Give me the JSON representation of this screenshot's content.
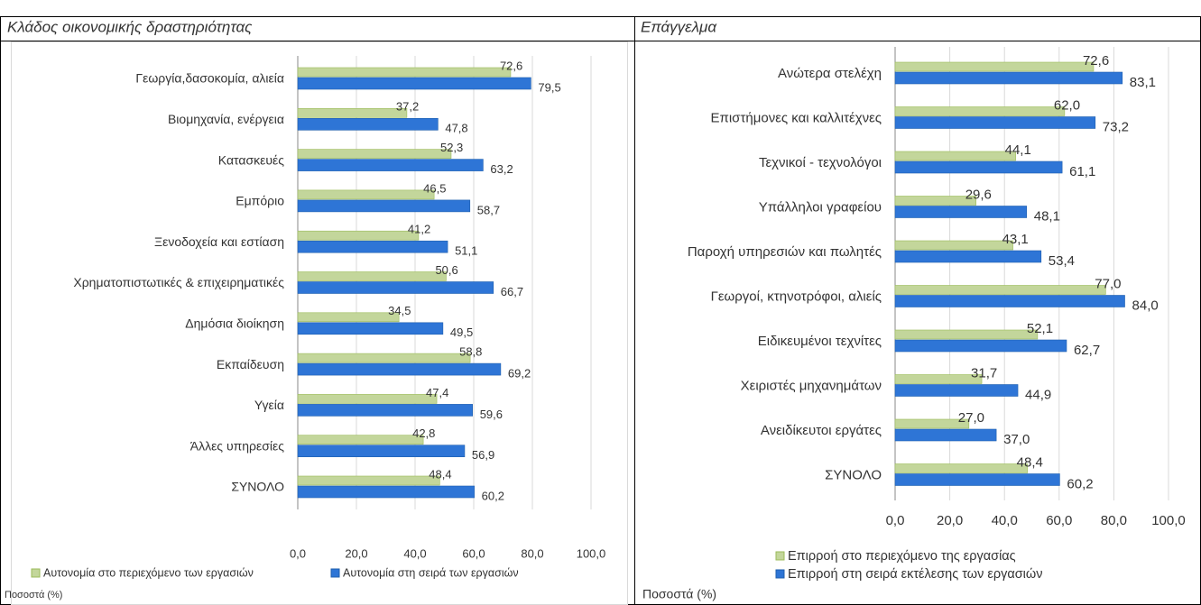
{
  "chart_data": [
    {
      "type": "bar",
      "title": "Κλάδος οικονομικής δραστηριότητας",
      "categories": [
        "Γεωργία,δασοκομία,  αλιεία",
        "Βιομηχανία, ενέργεια",
        "Κατασκευές",
        "Εμπόριο",
        "Ξενοδοχεία και εστίαση",
        "Χρηματοπιστωτικές & επιχειρηματικές",
        "Δημόσια διοίκηση",
        "Εκπαίδευση",
        "Υγεία",
        "Άλλες υπηρεσίες",
        "ΣΥΝΟΛΟ"
      ],
      "series": [
        {
          "name": "Αυτονομία στο περιεχόμενο των εργασιών",
          "color": "#c3d69b",
          "values": [
            72.6,
            37.2,
            52.3,
            46.5,
            41.2,
            50.6,
            34.5,
            58.8,
            47.4,
            42.8,
            48.4
          ],
          "value_labels": [
            "72,6",
            "37,2",
            "52,3",
            "46,5",
            "41,2",
            "50,6",
            "34,5",
            "58,8",
            "47,4",
            "42,8",
            "48,4"
          ]
        },
        {
          "name": "Αυτονομία  στη σειρά των εργασιών",
          "color": "#2e75d6",
          "values": [
            79.5,
            47.8,
            63.2,
            58.7,
            51.1,
            66.7,
            49.5,
            69.2,
            59.6,
            56.9,
            60.2
          ],
          "value_labels": [
            "79,5",
            "47,8",
            "63,2",
            "58,7",
            "51,1",
            "66,7",
            "49,5",
            "69,2",
            "59,6",
            "56,9",
            "60,2"
          ]
        }
      ],
      "xlim": [
        0,
        100
      ],
      "xticks": [
        {
          "value": 0,
          "label": "0,0"
        },
        {
          "value": 20,
          "label": "20,0"
        },
        {
          "value": 40,
          "label": "40,0"
        },
        {
          "value": 60,
          "label": "60,0"
        },
        {
          "value": 80,
          "label": "80,0"
        },
        {
          "value": 100,
          "label": "100,0"
        }
      ],
      "grid": true,
      "note": "Ποσοστά (%)"
    },
    {
      "type": "bar",
      "title": "Επάγγελμα",
      "categories": [
        "Ανώτερα στελέχη",
        "Επιστήμονες και καλλιτέχνες",
        "Τεχνικοί - τεχνολόγοι",
        "Υπάλληλοι γραφείου",
        "Παροχή υπηρεσιών και πωλητές",
        "Γεωργοί, κτηνοτρόφοι, αλιείς",
        "Ειδικευμένοι τεχνίτες",
        "Χειριστές μηχανημάτων",
        "Ανειδίκευτοι εργάτες",
        "ΣΥΝΟΛΟ"
      ],
      "series": [
        {
          "name": "Επιρροή στο περιεχόμενο της εργασίας",
          "color": "#c3d69b",
          "values": [
            72.6,
            62.0,
            44.1,
            29.6,
            43.1,
            77.0,
            52.1,
            31.7,
            27.0,
            48.4
          ],
          "value_labels": [
            "72,6",
            "62,0",
            "44,1",
            "29,6",
            "43,1",
            "77,0",
            "52,1",
            "31,7",
            "27,0",
            "48,4"
          ]
        },
        {
          "name": "Επιρροή στη σειρά εκτέλεσης των  εργασιών",
          "color": "#2e75d6",
          "values": [
            83.1,
            73.2,
            61.1,
            48.1,
            53.4,
            84.0,
            62.7,
            44.9,
            37.0,
            60.2
          ],
          "value_labels": [
            "83,1",
            "73,2",
            "61,1",
            "48,1",
            "53,4",
            "84,0",
            "62,7",
            "44,9",
            "37,0",
            "60,2"
          ]
        }
      ],
      "xlim": [
        0,
        100
      ],
      "xticks": [
        {
          "value": 0,
          "label": "0,0"
        },
        {
          "value": 20,
          "label": "20,0"
        },
        {
          "value": 40,
          "label": "40,0"
        },
        {
          "value": 60,
          "label": "60,0"
        },
        {
          "value": 80,
          "label": "80,0"
        },
        {
          "value": 100,
          "label": "100,0"
        }
      ],
      "grid": true,
      "note": "Ποσοστά (%)"
    }
  ]
}
